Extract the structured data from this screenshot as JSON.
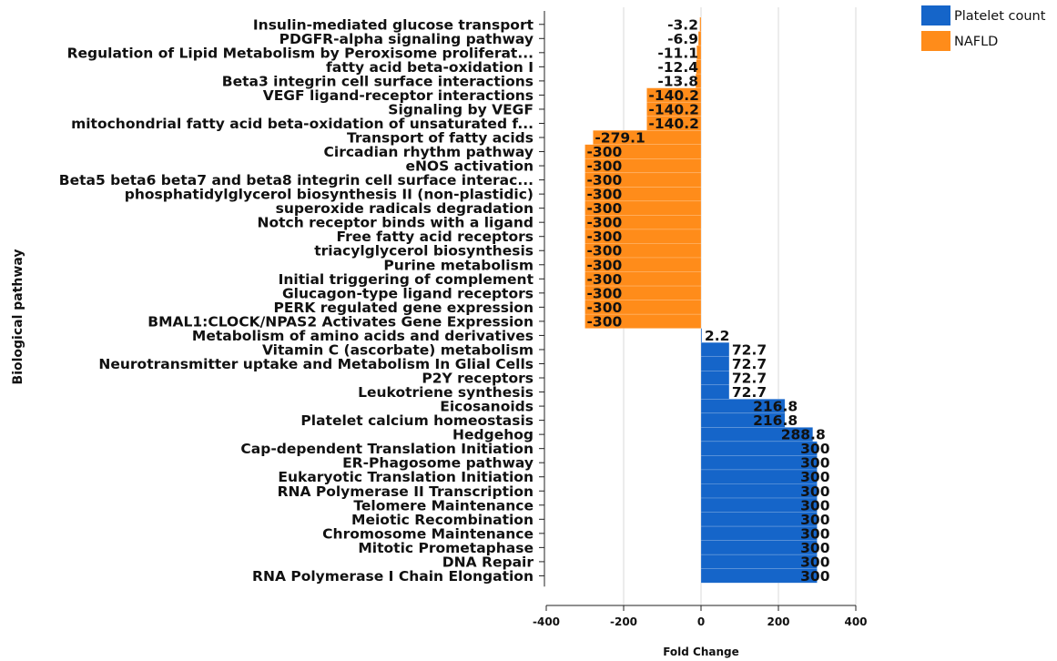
{
  "chart_data": {
    "type": "bar",
    "orientation": "horizontal",
    "xlabel": "Fold Change",
    "ylabel": "Biological pathway",
    "xlim": [
      -400,
      400
    ],
    "xticks": [
      -400,
      -200,
      0,
      200,
      400
    ],
    "grid": true,
    "legend_position": "top-right",
    "legend": [
      {
        "name": "Platelet count",
        "color": "#1565c9"
      },
      {
        "name": "NAFLD",
        "color": "#ff8c1a"
      }
    ],
    "bars": [
      {
        "label": "Insulin-mediated glucose transport",
        "value": -3.2,
        "value_label": "-3.2",
        "series": "NAFLD"
      },
      {
        "label": "PDGFR-alpha signaling pathway",
        "value": -6.9,
        "value_label": "-6.9",
        "series": "NAFLD"
      },
      {
        "label": "Regulation of Lipid Metabolism by Peroxisome proliferat...",
        "value": -11.1,
        "value_label": "-11.1",
        "series": "NAFLD"
      },
      {
        "label": "fatty acid beta-oxidation I",
        "value": -12.4,
        "value_label": "-12.4",
        "series": "NAFLD"
      },
      {
        "label": "Beta3 integrin cell surface interactions",
        "value": -13.8,
        "value_label": "-13.8",
        "series": "NAFLD"
      },
      {
        "label": "VEGF ligand-receptor interactions",
        "value": -140.2,
        "value_label": "-140.2",
        "series": "NAFLD"
      },
      {
        "label": "Signaling by VEGF",
        "value": -140.2,
        "value_label": "-140.2",
        "series": "NAFLD"
      },
      {
        "label": "mitochondrial fatty acid beta-oxidation of unsaturated f...",
        "value": -140.2,
        "value_label": "-140.2",
        "series": "NAFLD"
      },
      {
        "label": "Transport of fatty acids",
        "value": -279.1,
        "value_label": "-279.1",
        "series": "NAFLD"
      },
      {
        "label": "Circadian rhythm pathway",
        "value": -300,
        "value_label": "-300",
        "series": "NAFLD"
      },
      {
        "label": "eNOS activation",
        "value": -300,
        "value_label": "-300",
        "series": "NAFLD"
      },
      {
        "label": "Beta5 beta6 beta7 and beta8 integrin cell surface interac...",
        "value": -300,
        "value_label": "-300",
        "series": "NAFLD"
      },
      {
        "label": "phosphatidylglycerol biosynthesis II (non-plastidic)",
        "value": -300,
        "value_label": "-300",
        "series": "NAFLD"
      },
      {
        "label": "superoxide radicals degradation",
        "value": -300,
        "value_label": "-300",
        "series": "NAFLD"
      },
      {
        "label": "Notch receptor binds with a ligand",
        "value": -300,
        "value_label": "-300",
        "series": "NAFLD"
      },
      {
        "label": "Free fatty acid receptors",
        "value": -300,
        "value_label": "-300",
        "series": "NAFLD"
      },
      {
        "label": "triacylglycerol biosynthesis",
        "value": -300,
        "value_label": "-300",
        "series": "NAFLD"
      },
      {
        "label": "Purine metabolism",
        "value": -300,
        "value_label": "-300",
        "series": "NAFLD"
      },
      {
        "label": "Initial triggering of complement",
        "value": -300,
        "value_label": "-300",
        "series": "NAFLD"
      },
      {
        "label": "Glucagon-type ligand receptors",
        "value": -300,
        "value_label": "-300",
        "series": "NAFLD"
      },
      {
        "label": "PERK regulated gene expression",
        "value": -300,
        "value_label": "-300",
        "series": "NAFLD"
      },
      {
        "label": "BMAL1:CLOCK/NPAS2 Activates Gene Expression",
        "value": -300,
        "value_label": "-300",
        "series": "NAFLD"
      },
      {
        "label": "Metabolism of amino acids and derivatives",
        "value": 2.2,
        "value_label": "2.2",
        "series": "Platelet count"
      },
      {
        "label": "Vitamin C (ascorbate) metabolism",
        "value": 72.7,
        "value_label": "72.7",
        "series": "Platelet count"
      },
      {
        "label": "Neurotransmitter uptake and Metabolism In Glial Cells",
        "value": 72.7,
        "value_label": "72.7",
        "series": "Platelet count"
      },
      {
        "label": "P2Y receptors",
        "value": 72.7,
        "value_label": "72.7",
        "series": "Platelet count"
      },
      {
        "label": "Leukotriene synthesis",
        "value": 72.7,
        "value_label": "72.7",
        "series": "Platelet count"
      },
      {
        "label": "Eicosanoids",
        "value": 216.8,
        "value_label": "216.8",
        "series": "Platelet count"
      },
      {
        "label": "Platelet calcium homeostasis",
        "value": 216.8,
        "value_label": "216.8",
        "series": "Platelet count"
      },
      {
        "label": "Hedgehog",
        "value": 288.8,
        "value_label": "288.8",
        "series": "Platelet count"
      },
      {
        "label": "Cap-dependent Translation Initiation",
        "value": 300,
        "value_label": "300",
        "series": "Platelet count"
      },
      {
        "label": "ER-Phagosome pathway",
        "value": 300,
        "value_label": "300",
        "series": "Platelet count"
      },
      {
        "label": "Eukaryotic Translation Initiation",
        "value": 300,
        "value_label": "300",
        "series": "Platelet count"
      },
      {
        "label": "RNA Polymerase II Transcription",
        "value": 300,
        "value_label": "300",
        "series": "Platelet count"
      },
      {
        "label": "Telomere Maintenance",
        "value": 300,
        "value_label": "300",
        "series": "Platelet count"
      },
      {
        "label": "Meiotic Recombination",
        "value": 300,
        "value_label": "300",
        "series": "Platelet count"
      },
      {
        "label": "Chromosome Maintenance",
        "value": 300,
        "value_label": "300",
        "series": "Platelet count"
      },
      {
        "label": "Mitotic Prometaphase",
        "value": 300,
        "value_label": "300",
        "series": "Platelet count"
      },
      {
        "label": "DNA Repair",
        "value": 300,
        "value_label": "300",
        "series": "Platelet count"
      },
      {
        "label": "RNA Polymerase I Chain Elongation",
        "value": 300,
        "value_label": "300",
        "series": "Platelet count"
      }
    ]
  }
}
